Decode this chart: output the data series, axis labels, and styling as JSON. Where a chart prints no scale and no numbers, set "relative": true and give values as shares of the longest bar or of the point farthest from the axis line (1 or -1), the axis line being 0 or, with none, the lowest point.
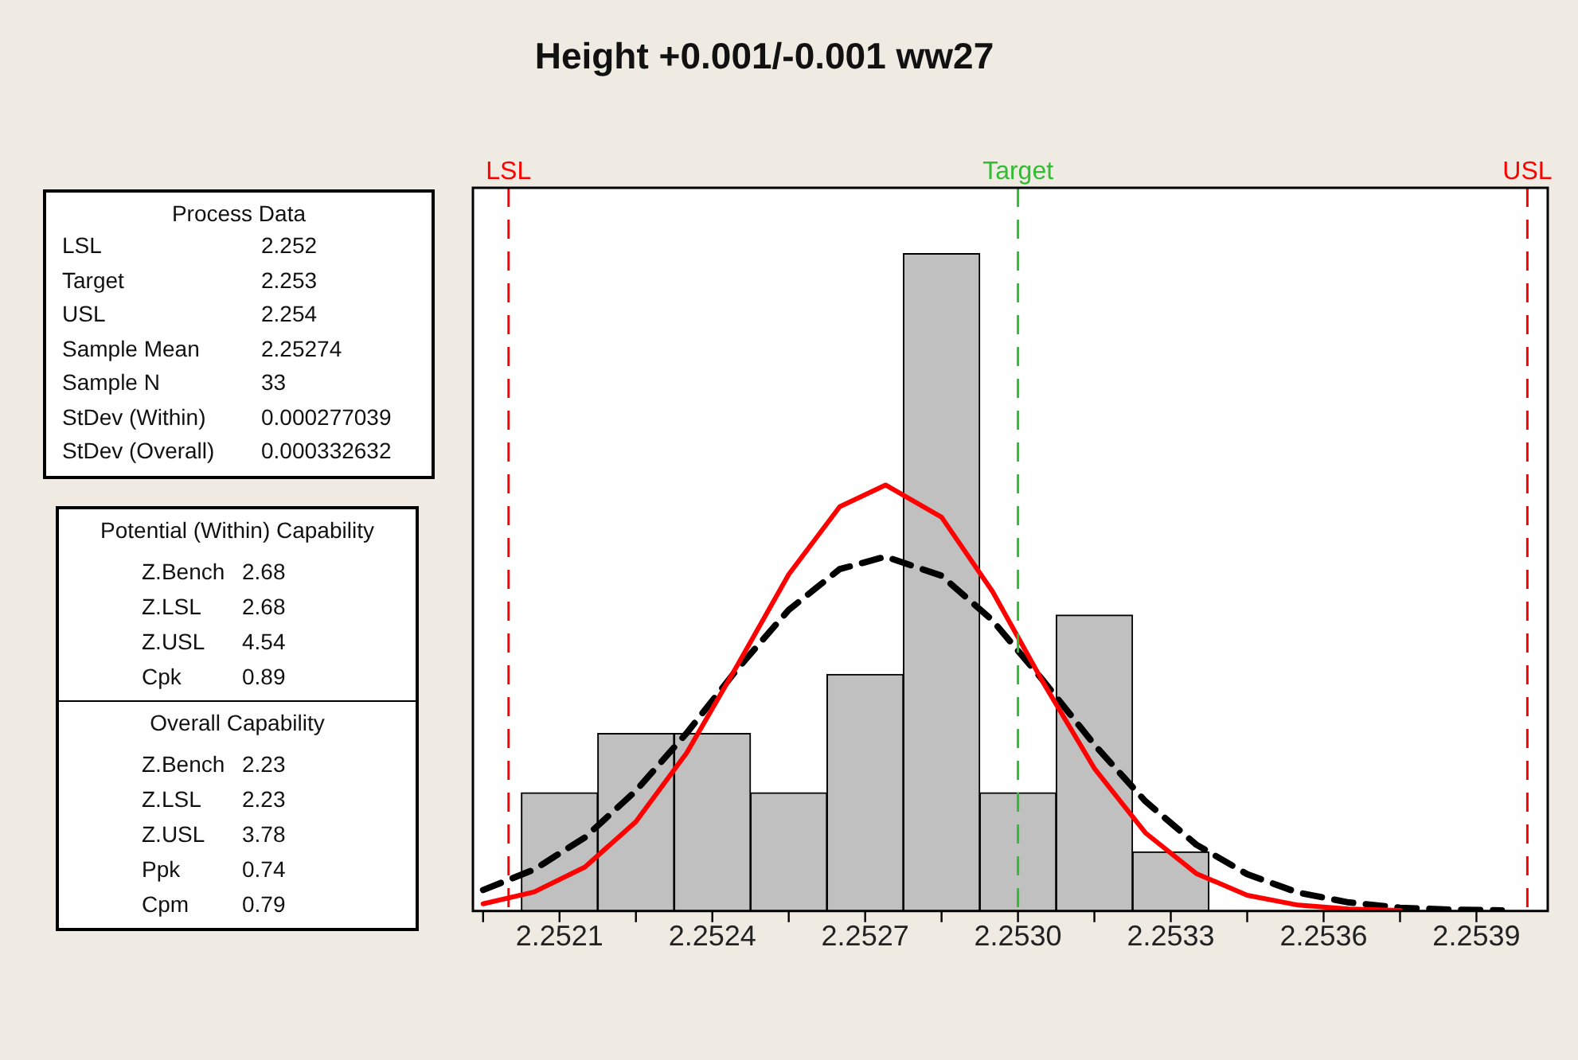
{
  "chart_data": {
    "type": "histogram",
    "title": "Height +0.001/-0.001 ww27",
    "relative": true,
    "bins": [
      2.252025,
      2.252175,
      2.252325,
      2.252475,
      2.252625,
      2.252775,
      2.252925,
      2.253075,
      2.253225,
      2.253375
    ],
    "values": [
      0.18,
      0.27,
      0.27,
      0.18,
      0.36,
      1,
      0.18,
      0.45,
      0.09
    ],
    "color": "#c0c0c0",
    "series": [
      {
        "type": "line",
        "color": "#ff0000",
        "line_style": "solid",
        "x": [
          2.25195,
          2.25205,
          2.25215,
          2.25225,
          2.25235,
          2.25245,
          2.25255,
          2.25265,
          2.25274,
          2.25285,
          2.25295,
          2.25305,
          2.25315,
          2.25325,
          2.25335,
          2.25345,
          2.25355,
          2.25365,
          2.25375
        ],
        "values": [
          0.011,
          0.029,
          0.067,
          0.136,
          0.241,
          0.375,
          0.512,
          0.615,
          0.648,
          0.599,
          0.486,
          0.347,
          0.217,
          0.119,
          0.057,
          0.024,
          0.009,
          0.003,
          0.001
        ]
      },
      {
        "type": "line",
        "color": "#000000",
        "line_style": "dashed",
        "x": [
          2.25195,
          2.25205,
          2.25215,
          2.25225,
          2.25235,
          2.25245,
          2.25255,
          2.25265,
          2.25274,
          2.25285,
          2.25295,
          2.25305,
          2.25315,
          2.25325,
          2.25335,
          2.25345,
          2.25355,
          2.25365,
          2.25375,
          2.25385,
          2.25395
        ],
        "values": [
          0.032,
          0.063,
          0.112,
          0.183,
          0.271,
          0.369,
          0.458,
          0.52,
          0.539,
          0.51,
          0.442,
          0.35,
          0.253,
          0.167,
          0.101,
          0.056,
          0.028,
          0.013,
          0.005,
          0.002,
          0.001
        ]
      }
    ],
    "xlim": [
      2.25193,
      2.25404
    ],
    "xticks": [
      {
        "value": 2.25195,
        "label": null
      },
      2.2521,
      {
        "value": 2.25225,
        "label": null
      },
      2.2524,
      {
        "value": 2.25255,
        "label": null
      },
      2.2527,
      {
        "value": 2.25285,
        "label": null
      },
      {
        "value": 2.253,
        "label": "2.2530"
      },
      {
        "value": 2.25315,
        "label": null
      },
      2.2533,
      {
        "value": 2.25345,
        "label": null
      },
      2.2536,
      {
        "value": 2.25375,
        "label": null
      },
      2.2539
    ],
    "ref_lines": [
      {
        "axis": "x",
        "value": 2.252,
        "label": "LSL",
        "color": "#ff0000",
        "line_style": "dashed"
      },
      {
        "axis": "x",
        "value": 2.253,
        "label": "Target",
        "color": "#33bb33",
        "line_style": "dashed"
      },
      {
        "axis": "x",
        "value": 2.254,
        "label": "USL",
        "color": "#ff0000",
        "line_style": "dashed"
      }
    ],
    "annotations": [
      "Process Data",
      "LSL\t2.252",
      "Target\t2.253",
      "USL\t2.254",
      "Sample Mean\t2.25274",
      "Sample N\t33",
      "StDev (Within)\t0.000277039",
      "StDev (Overall)\t0.000332632",
      "Potential (Within) Capability",
      "Z.Bench\t2.68",
      "Z.LSL\t2.68",
      "Z.USL\t4.54",
      "Cpk\t0.89",
      "Overall Capability",
      "Z.Bench\t2.23",
      "Z.LSL\t2.23",
      "Z.USL\t3.78",
      "Ppk\t0.74",
      "Cpm\t0.79"
    ],
    "grid": false,
    "legend": false,
    "marker": "none"
  }
}
